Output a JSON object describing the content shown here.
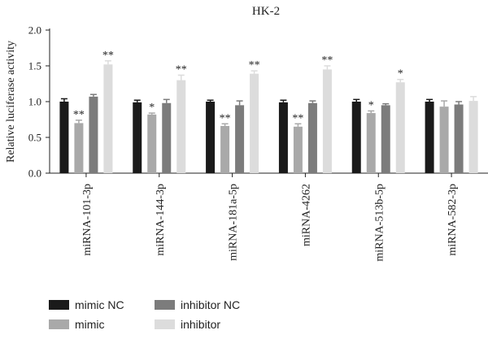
{
  "chart_data": {
    "type": "bar",
    "title": "HK-2",
    "xlabel": "",
    "ylabel": "Relative luciferase activity",
    "ylim": [
      0,
      2.0
    ],
    "yticks": [
      "0.0",
      "0.5",
      "1.0",
      "1.5",
      "2.0"
    ],
    "categories": [
      "miRNA-101-3p",
      "miRNA-144-3p",
      "miRNA-181a-5p",
      "miRNA-4262",
      "miRNA-513b-5p",
      "miRNA-582-3p"
    ],
    "series": [
      {
        "name": "mimic NC",
        "color": "#1a1a1a",
        "values": [
          1.0,
          0.99,
          1.0,
          0.99,
          1.0,
          1.0
        ],
        "errors": [
          0.04,
          0.03,
          0.02,
          0.03,
          0.03,
          0.03
        ],
        "annotations": [
          "",
          "",
          "",
          "",
          "",
          ""
        ]
      },
      {
        "name": "mimic",
        "color": "#a9a9a9",
        "values": [
          0.7,
          0.82,
          0.66,
          0.65,
          0.84,
          0.93
        ],
        "errors": [
          0.04,
          0.02,
          0.03,
          0.04,
          0.03,
          0.08
        ],
        "annotations": [
          "**",
          "*",
          "**",
          "**",
          "*",
          ""
        ]
      },
      {
        "name": "inhibitor NC",
        "color": "#7c7c7c",
        "values": [
          1.07,
          0.98,
          0.95,
          0.98,
          0.95,
          0.96
        ],
        "errors": [
          0.03,
          0.05,
          0.06,
          0.03,
          0.02,
          0.04
        ],
        "annotations": [
          "",
          "",
          "",
          "",
          "",
          ""
        ]
      },
      {
        "name": "inhibitor",
        "color": "#dcdcdc",
        "values": [
          1.52,
          1.3,
          1.39,
          1.45,
          1.27,
          1.01
        ],
        "errors": [
          0.05,
          0.07,
          0.04,
          0.05,
          0.04,
          0.06
        ],
        "annotations": [
          "**",
          "**",
          "**",
          "**",
          "*",
          ""
        ]
      }
    ],
    "legend_position": "bottom-left",
    "grid": false
  }
}
